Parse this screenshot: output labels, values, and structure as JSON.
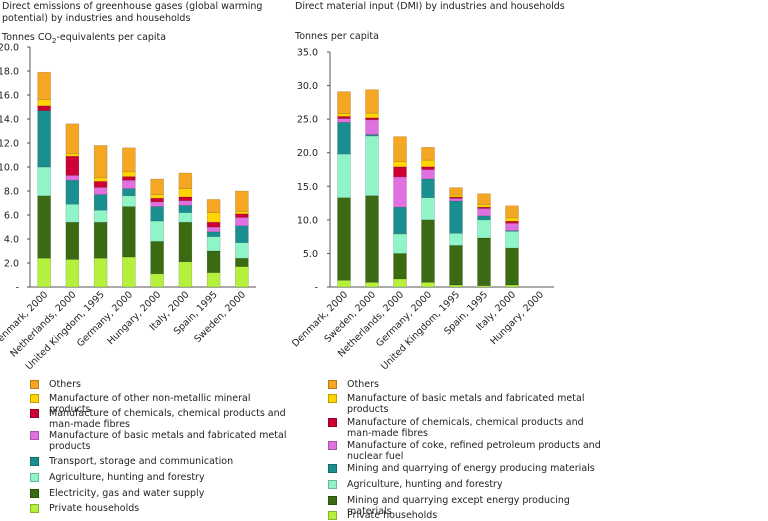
{
  "chart_data": [
    {
      "type": "bar",
      "stacked": true,
      "title": "Direct emissions of greenhouse gases (global warming potential) by industries and households",
      "ylabel_prefix": "Tonnes CO",
      "ylabel_sub": "2",
      "ylabel_suffix": "-equivalents per capita",
      "ylim": [
        0,
        20
      ],
      "yticks": [
        "-",
        "2.0",
        "4.0",
        "6.0",
        "8.0",
        "10.0",
        "12.0",
        "14.0",
        "16.0",
        "18.0",
        "20.0"
      ],
      "categories": [
        "Denmark, 2000",
        "Netherlands, 2000",
        "United Kingdom, 1995",
        "Germany, 2000",
        "Hungary, 2000",
        "Italy, 2000",
        "Spain, 1995",
        "Sweden, 2000"
      ],
      "series": [
        {
          "name": "Private households",
          "color": "#b5f03c",
          "values": [
            2.4,
            2.3,
            2.4,
            2.5,
            1.1,
            2.1,
            1.2,
            1.7
          ]
        },
        {
          "name": "Electricity, gas and water supply",
          "color": "#3a6b12",
          "values": [
            5.2,
            3.1,
            3.0,
            4.2,
            2.7,
            3.3,
            1.8,
            0.7
          ]
        },
        {
          "name": "Agriculture, hunting and forestry",
          "color": "#8ff5c8",
          "values": [
            2.4,
            1.5,
            1.0,
            0.9,
            1.7,
            0.8,
            1.2,
            1.3
          ]
        },
        {
          "name": "Transport, storage and communication",
          "color": "#1a8f8f",
          "values": [
            4.7,
            2.0,
            1.3,
            0.6,
            1.2,
            0.6,
            0.4,
            1.4
          ]
        },
        {
          "name": "Manufacture of basic metals and fabricated metal products",
          "color": "#e070e0",
          "values": [
            0.0,
            0.4,
            0.6,
            0.7,
            0.4,
            0.4,
            0.4,
            0.7
          ]
        },
        {
          "name": "Manufacture of chemicals, chemical products and man-made fibres",
          "color": "#cc0033",
          "values": [
            0.4,
            1.6,
            0.5,
            0.3,
            0.3,
            0.3,
            0.4,
            0.3
          ]
        },
        {
          "name": "Manufacture of other non-metallic mineral products",
          "color": "#ffd400",
          "values": [
            0.5,
            0.2,
            0.3,
            0.4,
            0.3,
            0.7,
            0.8,
            0.2
          ]
        },
        {
          "name": "Others",
          "color": "#f5a623",
          "values": [
            2.3,
            2.5,
            2.7,
            2.0,
            1.3,
            1.3,
            1.1,
            1.7
          ]
        }
      ],
      "legend": [
        "Others",
        "Manufacture of other non-metallic mineral products",
        "Manufacture of chemicals, chemical products and man-made fibres",
        "Manufacture of basic metals and fabricated metal products",
        "Transport, storage and communication",
        "Agriculture, hunting and forestry",
        "Electricity, gas and water supply",
        "Private households"
      ],
      "legend_placement": "bottom"
    },
    {
      "type": "bar",
      "stacked": true,
      "title": "Direct material input (DMI) by industries and households",
      "ylabel_prefix": "Tonnes per capita",
      "ylabel_sub": "",
      "ylabel_suffix": "",
      "ylim": [
        0,
        35
      ],
      "yticks": [
        "-",
        "5.0",
        "10.0",
        "15.0",
        "20.0",
        "25.0",
        "30.0",
        "35.0"
      ],
      "categories": [
        "Denmark, 2000",
        "Sweden, 2000",
        "Netherlands, 2000",
        "Germany, 2000",
        "United Kingdom, 1995",
        "Spain, 1995",
        "Italy, 2000",
        "Hungary, 2000"
      ],
      "series": [
        {
          "name": "Private households",
          "color": "#b5f03c",
          "values": [
            1.0,
            0.7,
            1.2,
            0.7,
            0.3,
            0.2,
            0.3,
            0
          ]
        },
        {
          "name": "Mining and quarrying except energy producing materials",
          "color": "#3a6b12",
          "values": [
            12.3,
            12.9,
            3.8,
            9.3,
            5.9,
            7.1,
            5.5,
            0
          ]
        },
        {
          "name": "Agriculture, hunting and forestry",
          "color": "#8ff5c8",
          "values": [
            6.5,
            8.9,
            2.9,
            3.3,
            1.8,
            2.7,
            2.5,
            0
          ]
        },
        {
          "name": "Mining and quarrying of energy producing materials",
          "color": "#1a8f8f",
          "values": [
            4.7,
            0.2,
            4.0,
            2.8,
            4.8,
            0.6,
            0.1,
            0
          ]
        },
        {
          "name": "Manufacture of coke, refined petroleum products and nuclear fuel",
          "color": "#e070e0",
          "values": [
            0.6,
            2.2,
            4.5,
            1.4,
            0.4,
            1.1,
            1.1,
            0
          ]
        },
        {
          "name": "Manufacture of chemicals, chemical products and man-made fibres",
          "color": "#cc0033",
          "values": [
            0.3,
            0.3,
            1.5,
            0.4,
            0.2,
            0.2,
            0.3,
            0
          ]
        },
        {
          "name": "Manufacture of basic metals and fabricated metal products",
          "color": "#ffd400",
          "values": [
            0.4,
            0.7,
            0.8,
            1.0,
            0.3,
            0.4,
            0.5,
            0
          ]
        },
        {
          "name": "Others",
          "color": "#f5a623",
          "values": [
            3.3,
            3.5,
            3.7,
            1.9,
            1.1,
            1.6,
            1.8,
            0
          ]
        }
      ],
      "legend": [
        "Others",
        "Manufacture of basic metals and fabricated metal products",
        "Manufacture of chemicals, chemical products and man-made fibres",
        "Manufacture of coke, refined petroleum products and nuclear fuel",
        "Mining and quarrying of energy producing materials",
        "Agriculture, hunting and forestry",
        "Mining and quarrying except energy producing materials",
        "Private households"
      ],
      "legend_placement": "bottom"
    }
  ]
}
